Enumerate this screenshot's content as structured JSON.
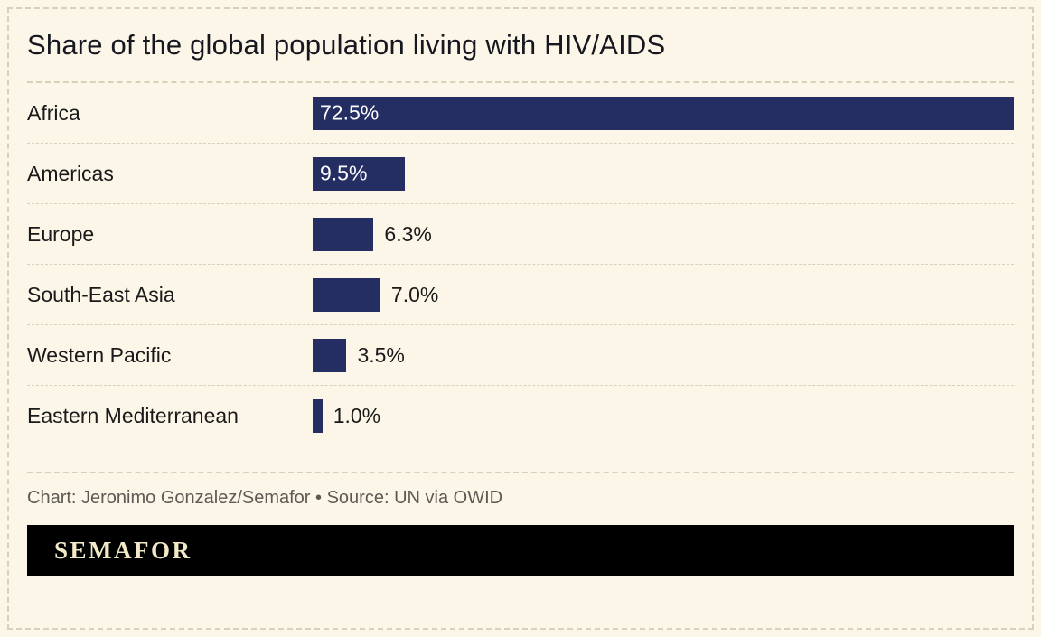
{
  "title": "Share of the global population living with HIV/AIDS",
  "footer": {
    "credit": "Chart: Jeronimo Gonzalez/Semafor • Source: UN via OWID",
    "brand": "SEMAFOR"
  },
  "chart_data": {
    "type": "bar",
    "orientation": "horizontal",
    "title": "Share of the global population living with HIV/AIDS",
    "categories": [
      "Africa",
      "Americas",
      "Europe",
      "South-East Asia",
      "Western Pacific",
      "Eastern Mediterranean"
    ],
    "values": [
      72.5,
      9.5,
      6.3,
      7.0,
      3.5,
      1.0
    ],
    "labels": [
      "72.5%",
      "9.5%",
      "6.3%",
      "7.0%",
      "3.5%",
      "1.0%"
    ],
    "xlim": [
      0,
      72.5
    ],
    "bar_color": "#242e63",
    "label_inside_threshold": 9,
    "grid": false,
    "legend": false
  }
}
